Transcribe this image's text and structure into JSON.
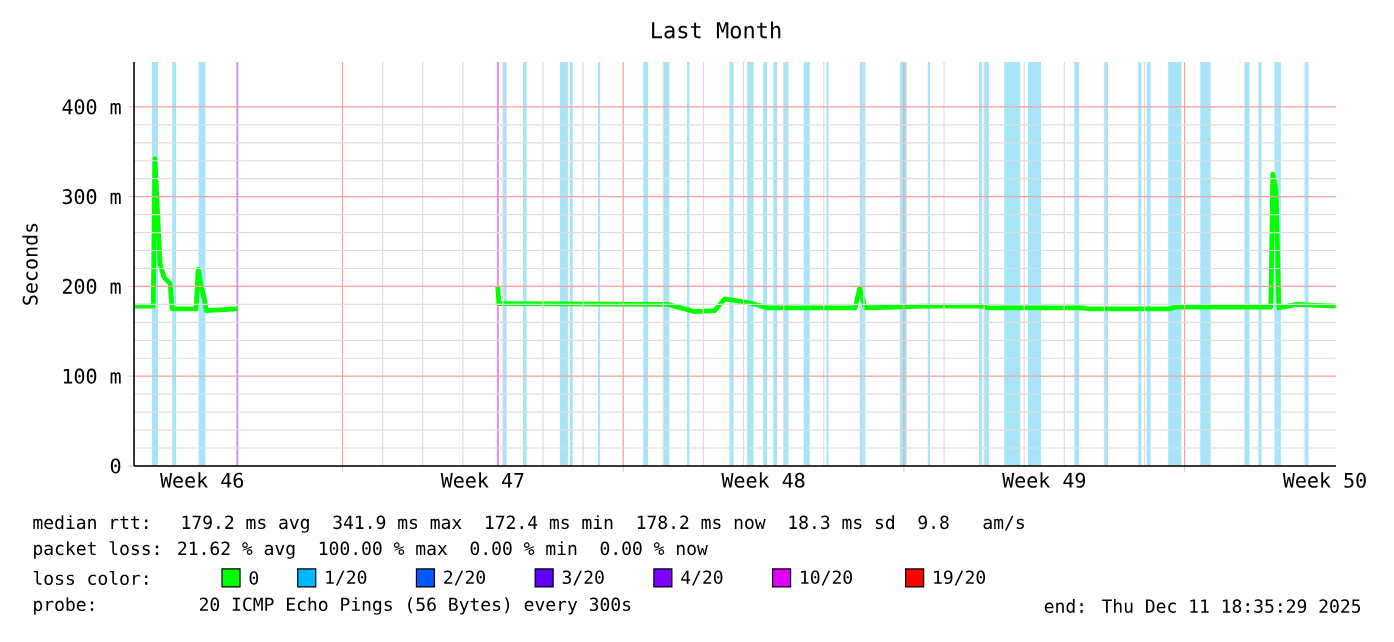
{
  "chart_data": {
    "type": "line",
    "title": "Last Month",
    "ylabel": "Seconds",
    "xlim": [
      "2025-11-11T19:12",
      "2025-12-11T18:35"
    ],
    "ylim": [
      0,
      450
    ],
    "xticks": [
      {
        "value": "2025-11-13T12:00",
        "label": "Week 46"
      },
      {
        "value": "2025-11-17T00:00",
        "label": null
      },
      {
        "value": "2025-11-20T12:00",
        "label": "Week 47"
      },
      {
        "value": "2025-11-24T00:00",
        "label": null
      },
      {
        "value": "2025-11-27T12:00",
        "label": "Week 48"
      },
      {
        "value": "2025-12-01T00:00",
        "label": null
      },
      {
        "value": "2025-12-04T12:00",
        "label": "Week 49"
      },
      {
        "value": "2025-12-08T00:00",
        "label": null
      },
      {
        "value": "2025-12-11T12:00",
        "label": "Week 50"
      }
    ],
    "yticks": [
      0,
      {
        "value": 100,
        "label": "100 m"
      },
      {
        "value": 200,
        "label": "200 m"
      },
      {
        "value": 300,
        "label": "300 m"
      },
      {
        "value": 400,
        "label": "400 m"
      }
    ],
    "grid": true,
    "legend": "bottom",
    "legend_title": "loss color:",
    "marker": "none",
    "line_style": "solid",
    "series": [
      {
        "name": "0",
        "color": "#00ff00",
        "x": [
          "2025-11-11T19:12",
          "2025-11-12T06:43",
          "2025-11-12T07:41",
          "2025-11-12T10:48",
          "2025-11-12T13:12",
          "2025-11-12T16:48",
          "2025-11-12T18:00",
          "2025-11-13T08:24",
          "2025-11-13T09:36",
          "2025-11-13T11:31",
          "2025-11-13T13:12",
          "2025-11-13T14:24",
          "2025-11-14T09:07",
          "2025-11-17T00:00",
          "2025-11-20T20:53",
          "2025-11-20T21:36",
          "2025-11-25T02:24",
          "2025-11-25T08:53",
          "2025-11-25T18:43",
          "2025-11-26T06:43",
          "2025-11-26T12:43",
          "2025-11-27T02:53",
          "2025-11-27T14:53",
          "2025-11-29T18:43",
          "2025-11-29T21:36",
          "2025-11-30T00:43",
          "2025-11-30T18:43",
          "2025-12-01T10:48",
          "2025-12-02T22:48",
          "2025-12-03T02:53",
          "2025-12-05T10:48",
          "2025-12-05T14:53",
          "2025-12-07T14:53",
          "2025-12-07T18:43",
          "2025-12-10T03:36",
          "2025-12-10T04:48",
          "2025-12-10T06:43",
          "2025-12-10T08:24",
          "2025-12-10T19:12",
          "2025-12-11T07:12",
          "2025-12-11T18:29"
        ],
        "values": [
          178,
          178,
          342,
          225,
          210,
          203,
          175,
          175,
          219,
          199,
          187,
          173,
          175,
          null,
          200,
          181,
          180,
          177,
          172,
          173,
          186,
          182,
          176,
          176,
          198,
          176,
          177,
          178,
          178,
          176,
          176,
          175,
          175,
          177,
          177,
          325,
          307,
          176,
          180,
          179,
          178
        ]
      },
      {
        "name": "1/20",
        "color": "#00b8ff"
      },
      {
        "name": "2/20",
        "color": "#0059ff"
      },
      {
        "name": "3/20",
        "color": "#5e00ff"
      },
      {
        "name": "4/20",
        "color": "#7e00ff"
      },
      {
        "name": "10/20",
        "color": "#dd00ff"
      },
      {
        "name": "19/20",
        "color": "#ff0000"
      }
    ],
    "bands": [
      {
        "axis": "x",
        "from": "2025-11-12T06:00",
        "to": "2025-11-12T09:36",
        "color": "#a8e4f8"
      },
      {
        "axis": "x",
        "from": "2025-11-12T18:00",
        "to": "2025-11-12T20:24",
        "color": "#a8e4f8"
      },
      {
        "axis": "x",
        "from": "2025-11-13T09:50",
        "to": "2025-11-13T13:55",
        "color": "#a8e4f8"
      },
      {
        "axis": "x",
        "from": "2025-11-14T08:24",
        "to": "2025-11-14T09:36",
        "color": "#c39bff"
      },
      {
        "axis": "x",
        "from": "2025-11-20T20:24",
        "to": "2025-11-20T21:36",
        "color": "#ee88ff"
      },
      {
        "axis": "x",
        "from": "2025-11-21T00:00",
        "to": "2025-11-21T02:10",
        "color": "#a8e4f8"
      },
      {
        "axis": "x",
        "from": "2025-11-21T12:00",
        "to": "2025-11-21T14:10",
        "color": "#a8e4f8"
      },
      {
        "axis": "x",
        "from": "2025-11-22T10:05",
        "to": "2025-11-22T14:53",
        "color": "#a8e4f8"
      },
      {
        "axis": "x",
        "from": "2025-11-22T16:05",
        "to": "2025-11-22T17:46",
        "color": "#a8e4f8"
      },
      {
        "axis": "x",
        "from": "2025-11-23T08:53",
        "to": "2025-11-23T10:05",
        "color": "#a8e4f8"
      },
      {
        "axis": "x",
        "from": "2025-11-24T12:00",
        "to": "2025-11-24T14:53",
        "color": "#a8e4f8"
      },
      {
        "axis": "x",
        "from": "2025-11-25T00:00",
        "to": "2025-11-25T03:36",
        "color": "#a8e4f8"
      },
      {
        "axis": "x",
        "from": "2025-11-25T14:10",
        "to": "2025-11-25T15:36",
        "color": "#a8e4f8"
      },
      {
        "axis": "x",
        "from": "2025-11-26T15:36",
        "to": "2025-11-26T18:00",
        "color": "#a8e4f8"
      },
      {
        "axis": "x",
        "from": "2025-11-27T02:10",
        "to": "2025-11-27T06:00",
        "color": "#a8e4f8"
      },
      {
        "axis": "x",
        "from": "2025-11-27T11:46",
        "to": "2025-11-27T14:10",
        "color": "#a8e4f8"
      },
      {
        "axis": "x",
        "from": "2025-11-27T17:46",
        "to": "2025-11-27T20:10",
        "color": "#a8e4f8"
      },
      {
        "axis": "x",
        "from": "2025-11-28T00:00",
        "to": "2025-11-28T02:53",
        "color": "#a8e4f8"
      },
      {
        "axis": "x",
        "from": "2025-11-28T12:00",
        "to": "2025-11-28T15:36",
        "color": "#a8e4f8"
      },
      {
        "axis": "x",
        "from": "2025-11-29T01:41",
        "to": "2025-11-29T02:53",
        "color": "#a8e4f8"
      },
      {
        "axis": "x",
        "from": "2025-11-29T21:36",
        "to": "2025-11-30T00:58",
        "color": "#a8e4f8"
      },
      {
        "axis": "x",
        "from": "2025-11-30T21:36",
        "to": "2025-12-01T01:41",
        "color": "#a8e4f8"
      },
      {
        "axis": "x",
        "from": "2025-12-01T14:10",
        "to": "2025-12-01T15:36",
        "color": "#a8e4f8"
      },
      {
        "axis": "x",
        "from": "2025-12-02T20:53",
        "to": "2025-12-02T22:48",
        "color": "#a8e4f8"
      },
      {
        "axis": "x",
        "from": "2025-12-03T00:00",
        "to": "2025-12-03T02:53",
        "color": "#a8e4f8"
      },
      {
        "axis": "x",
        "from": "2025-12-03T12:00",
        "to": "2025-12-03T21:36",
        "color": "#a8e4f8"
      },
      {
        "axis": "x",
        "from": "2025-12-04T02:10",
        "to": "2025-12-04T10:05",
        "color": "#a8e4f8"
      },
      {
        "axis": "x",
        "from": "2025-12-05T06:00",
        "to": "2025-12-05T08:53",
        "color": "#a8e4f8"
      },
      {
        "axis": "x",
        "from": "2025-12-05T23:46",
        "to": "2025-12-06T02:10",
        "color": "#a8e4f8"
      },
      {
        "axis": "x",
        "from": "2025-12-06T20:10",
        "to": "2025-12-06T22:05",
        "color": "#a8e4f8"
      },
      {
        "axis": "x",
        "from": "2025-12-07T01:12",
        "to": "2025-12-07T03:36",
        "color": "#a8e4f8"
      },
      {
        "axis": "x",
        "from": "2025-12-07T14:10",
        "to": "2025-12-07T22:05",
        "color": "#a8e4f8"
      },
      {
        "axis": "x",
        "from": "2025-12-08T09:22",
        "to": "2025-12-08T15:36",
        "color": "#a8e4f8"
      },
      {
        "axis": "x",
        "from": "2025-12-09T11:46",
        "to": "2025-12-09T14:53",
        "color": "#a8e4f8"
      },
      {
        "axis": "x",
        "from": "2025-12-09T20:10",
        "to": "2025-12-09T22:05",
        "color": "#a8e4f8"
      },
      {
        "axis": "x",
        "from": "2025-12-10T05:46",
        "to": "2025-12-10T09:36",
        "color": "#a8e4f8"
      },
      {
        "axis": "x",
        "from": "2025-12-10T23:46",
        "to": "2025-12-11T02:10",
        "color": "#a8e4f8"
      }
    ],
    "annotations": [
      "median rtt:  179.2 ms avg  341.9 ms max  172.4 ms min  178.2 ms now  18.3 ms sd  9.8   am/s",
      "packet loss: 21.62 % avg  100.00 % max  0.00 % min  0.00 % now",
      "probe:       20 ICMP Echo Pings (56 Bytes) every 300s",
      "end: Thu Dec 11 18:35:29 2025"
    ]
  }
}
